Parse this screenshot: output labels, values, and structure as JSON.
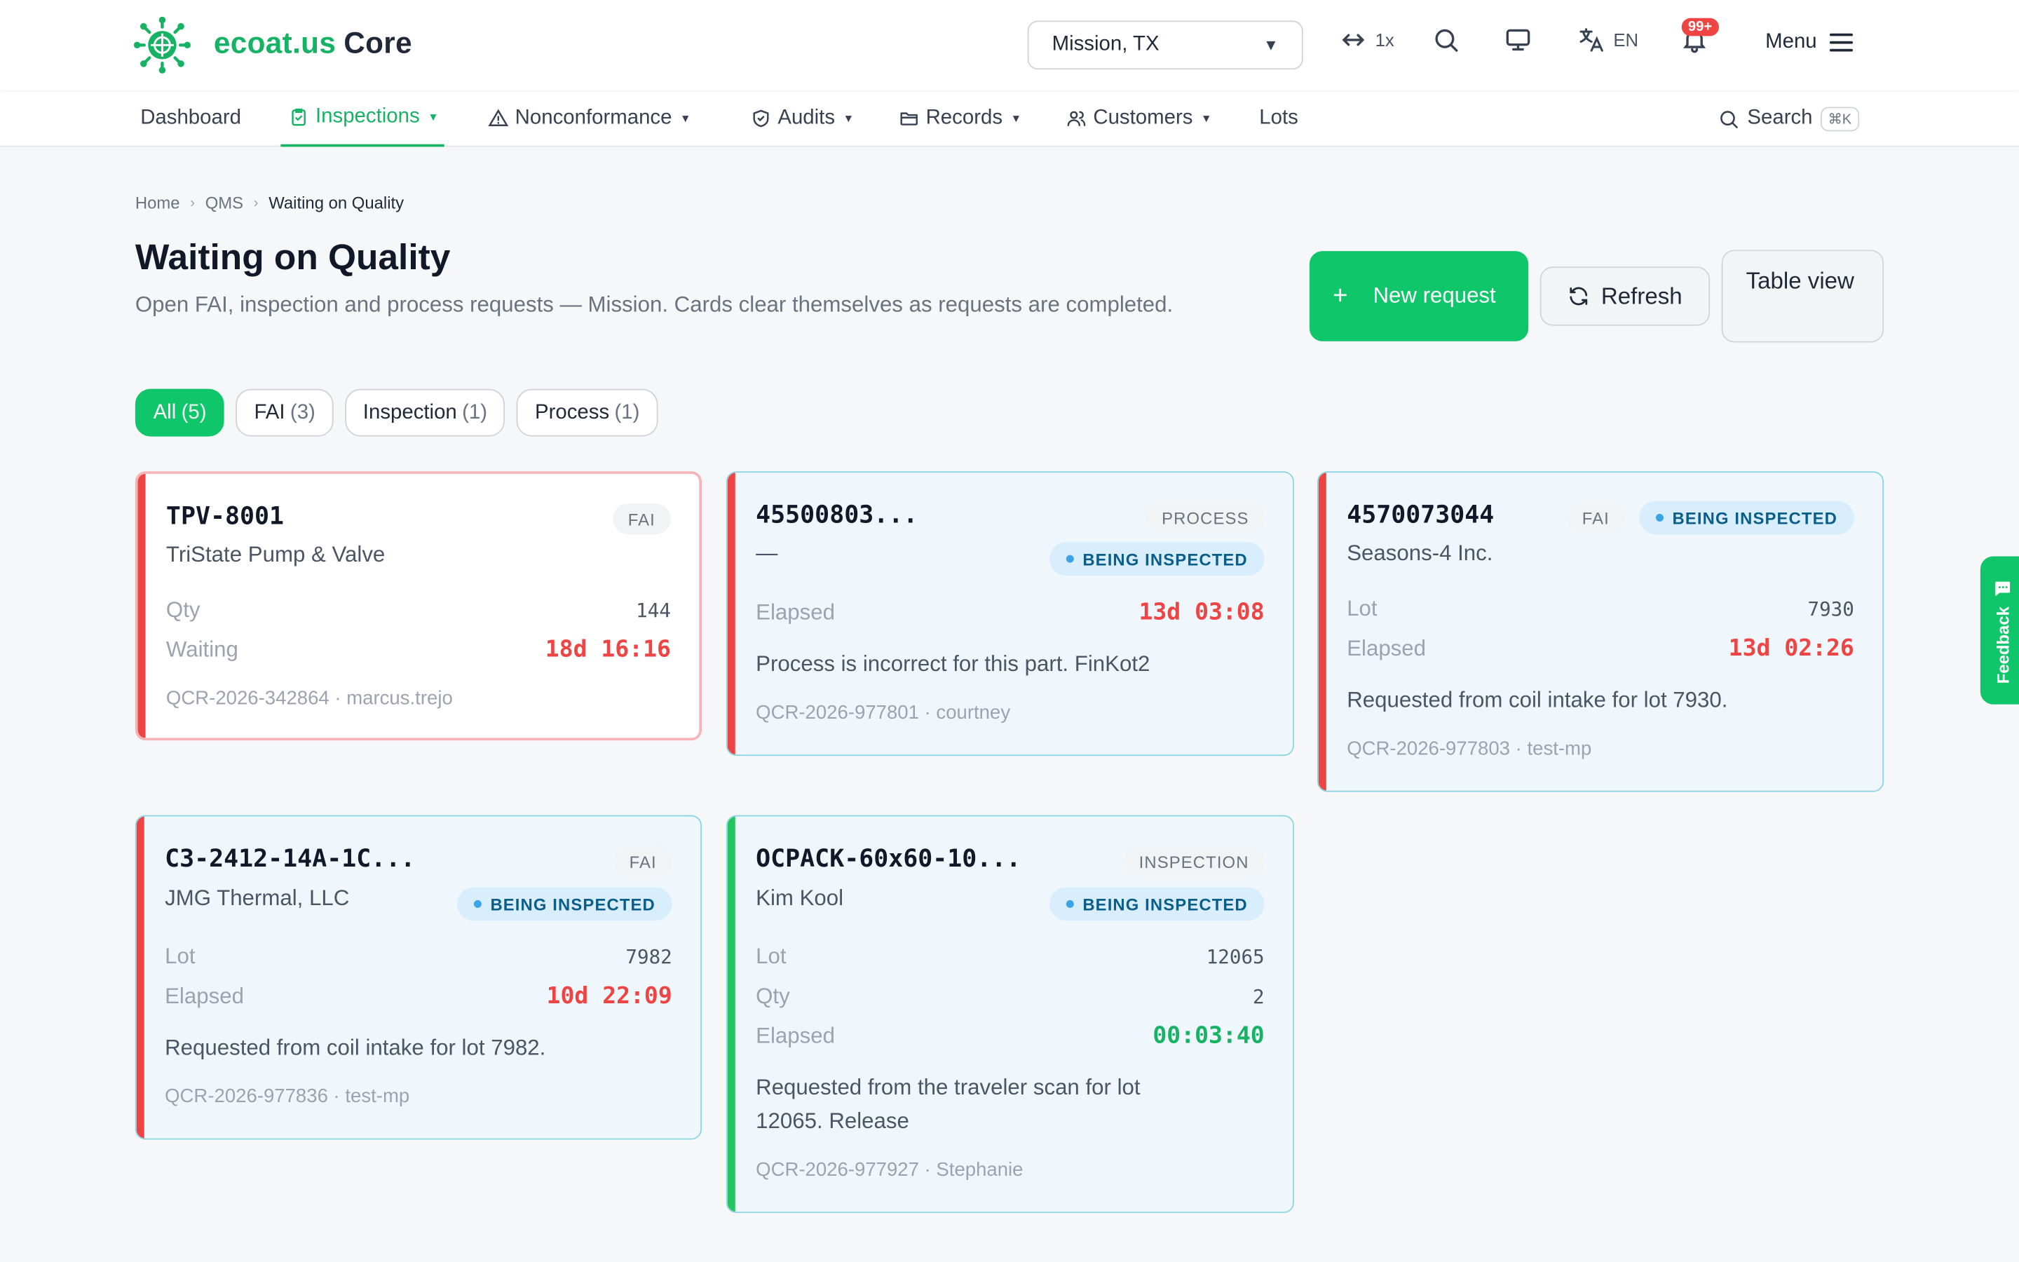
{
  "brand": {
    "name": "ecoat.us",
    "suffix": "Core"
  },
  "header": {
    "location": "Mission, TX",
    "zoom": "1x",
    "language": "EN",
    "notifications": "99+",
    "menu_label": "Menu"
  },
  "nav": {
    "items": [
      {
        "label": "Dashboard"
      },
      {
        "label": "Inspections"
      },
      {
        "label": "Nonconformance"
      },
      {
        "label": "Audits"
      },
      {
        "label": "Records"
      },
      {
        "label": "Customers"
      },
      {
        "label": "Lots"
      }
    ],
    "search_label": "Search",
    "search_shortcut": "⌘K"
  },
  "breadcrumb": [
    "Home",
    "QMS",
    "Waiting on Quality"
  ],
  "page": {
    "title": "Waiting on Quality",
    "subtitle": "Open FAI, inspection and process requests — Mission. Cards clear themselves as requests are completed.",
    "new_request": "New request",
    "refresh": "Refresh",
    "table_view": "Table view"
  },
  "filters": [
    {
      "label": "All",
      "count": "(5)"
    },
    {
      "label": "FAI",
      "count": "(3)"
    },
    {
      "label": "Inspection",
      "count": "(1)"
    },
    {
      "label": "Process",
      "count": "(1)"
    }
  ],
  "cards": [
    {
      "title": "TPV-8001",
      "type": "FAI",
      "customer": "TriState Pump & Valve",
      "rows": [
        {
          "label": "Qty",
          "value": "144"
        },
        {
          "label": "Waiting",
          "value": "18d 16:16"
        }
      ],
      "meta": "QCR-2026-342864 · marcus.trejo"
    },
    {
      "title": "45500803...",
      "type": "PROCESS",
      "customer": "—",
      "status": "BEING INSPECTED",
      "rows": [
        {
          "label": "Elapsed",
          "value": "13d 03:08"
        }
      ],
      "note": "Process is incorrect for this part. FinKot2",
      "meta": "QCR-2026-977801 · courtney"
    },
    {
      "title": "4570073044",
      "type": "FAI",
      "customer": "Seasons-4 Inc.",
      "status": "BEING INSPECTED",
      "rows": [
        {
          "label": "Lot",
          "value": "7930"
        },
        {
          "label": "Elapsed",
          "value": "13d 02:26"
        }
      ],
      "note": "Requested from coil intake for lot 7930.",
      "meta": "QCR-2026-977803 · test-mp"
    },
    {
      "title": "C3-2412-14A-1C...",
      "type": "FAI",
      "customer": "JMG Thermal, LLC",
      "status": "BEING INSPECTED",
      "rows": [
        {
          "label": "Lot",
          "value": "7982"
        },
        {
          "label": "Elapsed",
          "value": "10d 22:09"
        }
      ],
      "note": "Requested from coil intake for lot 7982.",
      "meta": "QCR-2026-977836 · test-mp"
    },
    {
      "title": "OCPACK-60x60-10...",
      "type": "INSPECTION",
      "customer": "Kim Kool",
      "status": "BEING INSPECTED",
      "rows": [
        {
          "label": "Lot",
          "value": "12065"
        },
        {
          "label": "Qty",
          "value": "2"
        },
        {
          "label": "Elapsed",
          "value": "00:03:40"
        }
      ],
      "note": "Requested from the traveler scan for lot 12065. Release",
      "meta": "QCR-2026-977927 · Stephanie"
    }
  ],
  "feedback_label": "Feedback",
  "colors": {
    "accent": "#10c66a",
    "danger": "#ef4444",
    "info_bg": "#eff7fd"
  }
}
